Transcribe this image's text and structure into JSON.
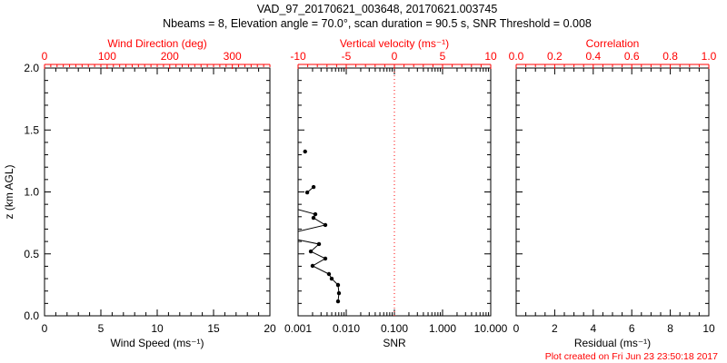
{
  "title": "VAD_97_20170621_003648, 20170621.003745",
  "subtitle": "Nbeams = 8, Elevation angle = 70.0°, scan duration = 90.5 s, SNR Threshold = 0.008",
  "footer": "Plot created on Fri Jun 23 23:50:18 2017",
  "colors": {
    "primary": "#000000",
    "secondary": "#ff0000",
    "background": "#ffffff"
  },
  "chart_data": [
    {
      "type": "line",
      "id": "wind",
      "bottom_axis": {
        "title": "Wind Speed (ms⁻¹)",
        "min": 0,
        "max": 20,
        "majors": [
          0,
          5,
          10,
          15,
          20
        ],
        "labels": [
          "0",
          "5",
          "10",
          "15",
          "20"
        ],
        "minor_step": 1
      },
      "top_axis": {
        "title": "Wind Direction (deg)",
        "min": 0,
        "max": 360,
        "majors": [
          0,
          100,
          200,
          300
        ],
        "labels": [
          "0",
          "100",
          "200",
          "300"
        ],
        "minor_step": 10
      },
      "left_axis": {
        "title": "z (km AGL)",
        "min": 0,
        "max": 2,
        "majors": [
          0,
          0.5,
          1,
          1.5,
          2
        ],
        "labels": [
          "0.0",
          "0.5",
          "1.0",
          "1.5",
          "2.0"
        ],
        "minor_step": 0.1
      },
      "series": []
    },
    {
      "type": "line",
      "id": "snr",
      "bottom_axis": {
        "title": "SNR",
        "min": 0.001,
        "max": 10,
        "log": true,
        "majors": [
          0.001,
          0.01,
          0.1,
          1,
          10
        ],
        "labels": [
          "0.001",
          "0.010",
          "0.100",
          "1.000",
          "10.000"
        ]
      },
      "top_axis": {
        "title": "Vertical velocity (ms⁻¹)",
        "min": -10,
        "max": 10,
        "majors": [
          -10,
          -5,
          0,
          5,
          10
        ],
        "labels": [
          "-10",
          "-5",
          "0",
          "5",
          "10"
        ],
        "minor_step": 1
      },
      "left_axis": {
        "min": 0,
        "max": 2,
        "majors": [
          0,
          0.5,
          1,
          1.5,
          2
        ],
        "minor_step": 0.1
      },
      "reference_line": {
        "axis": "top",
        "value": 0,
        "style": "dotted",
        "color": "#ff0000"
      },
      "series": [
        {
          "name": "snr-profile",
          "color": "#000000",
          "marker": "dot",
          "segments": [
            [
              [
                0.0014,
                1.326
              ]
            ],
            [
              [
                0.0021,
                1.04
              ],
              [
                0.00155,
                0.996
              ]
            ],
            [
              [
                0.0004,
                0.9
              ],
              [
                0.00228,
                0.82
              ],
              [
                0.00209,
                0.791
              ],
              [
                0.00368,
                0.733
              ],
              [
                0.0004,
                0.645
              ],
              [
                0.00272,
                0.579
              ],
              [
                0.00184,
                0.52
              ],
              [
                0.00368,
                0.462
              ],
              [
                0.002,
                0.403
              ],
              [
                0.00438,
                0.337
              ],
              [
                0.00499,
                0.3
              ],
              [
                0.00676,
                0.249
              ],
              [
                0.00706,
                0.183
              ],
              [
                0.00676,
                0.117
              ]
            ]
          ],
          "markers": [
            [
              0.0014,
              1.326
            ],
            [
              0.0021,
              1.04
            ],
            [
              0.00155,
              0.996
            ],
            [
              0.00228,
              0.82
            ],
            [
              0.00209,
              0.791
            ],
            [
              0.00368,
              0.733
            ],
            [
              0.00272,
              0.579
            ],
            [
              0.00184,
              0.52
            ],
            [
              0.00368,
              0.462
            ],
            [
              0.002,
              0.403
            ],
            [
              0.00438,
              0.337
            ],
            [
              0.00499,
              0.3
            ],
            [
              0.00676,
              0.249
            ],
            [
              0.00706,
              0.183
            ],
            [
              0.00676,
              0.117
            ]
          ]
        }
      ]
    },
    {
      "type": "line",
      "id": "residual",
      "bottom_axis": {
        "title": "Residual (ms⁻¹)",
        "min": 0,
        "max": 10,
        "majors": [
          0,
          2,
          4,
          6,
          8,
          10
        ],
        "labels": [
          "0",
          "2",
          "4",
          "6",
          "8",
          "10"
        ],
        "minor_step": 0.5
      },
      "top_axis": {
        "title": "Correlation",
        "min": 0,
        "max": 1,
        "majors": [
          0,
          0.2,
          0.4,
          0.6,
          0.8,
          1
        ],
        "labels": [
          "0.0",
          "0.2",
          "0.4",
          "0.6",
          "0.8",
          "1.0"
        ],
        "minor_step": 0.05
      },
      "left_axis": {
        "min": 0,
        "max": 2,
        "majors": [
          0,
          0.5,
          1,
          1.5,
          2
        ],
        "minor_step": 0.1
      },
      "series": []
    }
  ]
}
